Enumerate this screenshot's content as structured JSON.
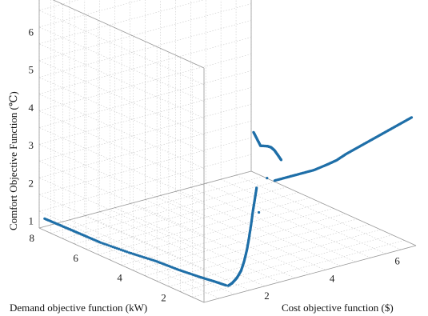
{
  "chart_data": {
    "type": "scatter",
    "title": "",
    "xlabel": "Cost objective function ($)",
    "ylabel": "Demand objective function (kW)",
    "zlabel": "Comfort Objective Function (℃)",
    "xlim": [
      0,
      6.5
    ],
    "ylim": [
      0.5,
      8
    ],
    "zlim": [
      0.8,
      7
    ],
    "x_ticks": [
      "2",
      "4",
      "6"
    ],
    "y_ticks": [
      "2",
      "4",
      "6",
      "8"
    ],
    "z_ticks": [
      "1",
      "2",
      "3",
      "4",
      "5",
      "6"
    ],
    "grid": true,
    "series_color": "#1f6fa8",
    "segments": [
      {
        "x": [
          0.1,
          0.2,
          0.3,
          0.4,
          0.6,
          0.8,
          0.9,
          1.0,
          1.1,
          1.15
        ],
        "y": [
          7.9,
          7.3,
          6.6,
          5.8,
          4.8,
          3.9,
          3.0,
          2.2,
          1.6,
          1.2
        ],
        "z": [
          1.05,
          1.0,
          0.95,
          0.9,
          0.85,
          0.82,
          0.8,
          0.8,
          0.8,
          0.8
        ]
      },
      {
        "x": [
          1.15,
          1.2,
          1.28,
          1.34,
          1.4,
          1.45,
          1.5,
          1.55,
          1.6,
          1.65,
          1.7
        ],
        "y": [
          1.1,
          1.0,
          0.9,
          0.8,
          0.75,
          0.7,
          0.68,
          0.66,
          0.65,
          0.64,
          0.63
        ],
        "z": [
          0.82,
          0.9,
          1.05,
          1.25,
          1.5,
          1.8,
          2.1,
          2.45,
          2.8,
          3.1,
          3.4
        ]
      },
      {
        "x": [
          1.6,
          1.7,
          1.8,
          2.0,
          2.1,
          2.2,
          2.3,
          2.4
        ],
        "y": [
          0.62,
          0.61,
          0.6,
          0.58,
          0.57,
          0.56,
          0.55,
          0.55
        ],
        "z": [
          4.9,
          4.7,
          4.5,
          4.45,
          4.4,
          4.3,
          4.15,
          4.0
        ]
      },
      {
        "x": [
          2.2,
          2.6,
          3.0,
          3.4,
          3.8,
          4.1,
          4.4,
          4.8,
          5.2,
          5.6,
          6.0,
          6.4
        ],
        "y": [
          0.55,
          0.55,
          0.55,
          0.55,
          0.55,
          0.55,
          0.55,
          0.55,
          0.55,
          0.55,
          0.55,
          0.55
        ],
        "z": [
          3.5,
          3.5,
          3.5,
          3.5,
          3.55,
          3.6,
          3.7,
          3.8,
          3.9,
          4.0,
          4.1,
          4.2
        ]
      }
    ],
    "isolated_points": [
      {
        "x": 1.75,
        "y": 0.6,
        "z": 2.75
      },
      {
        "x": 2.0,
        "y": 0.6,
        "z": 3.6
      }
    ]
  }
}
